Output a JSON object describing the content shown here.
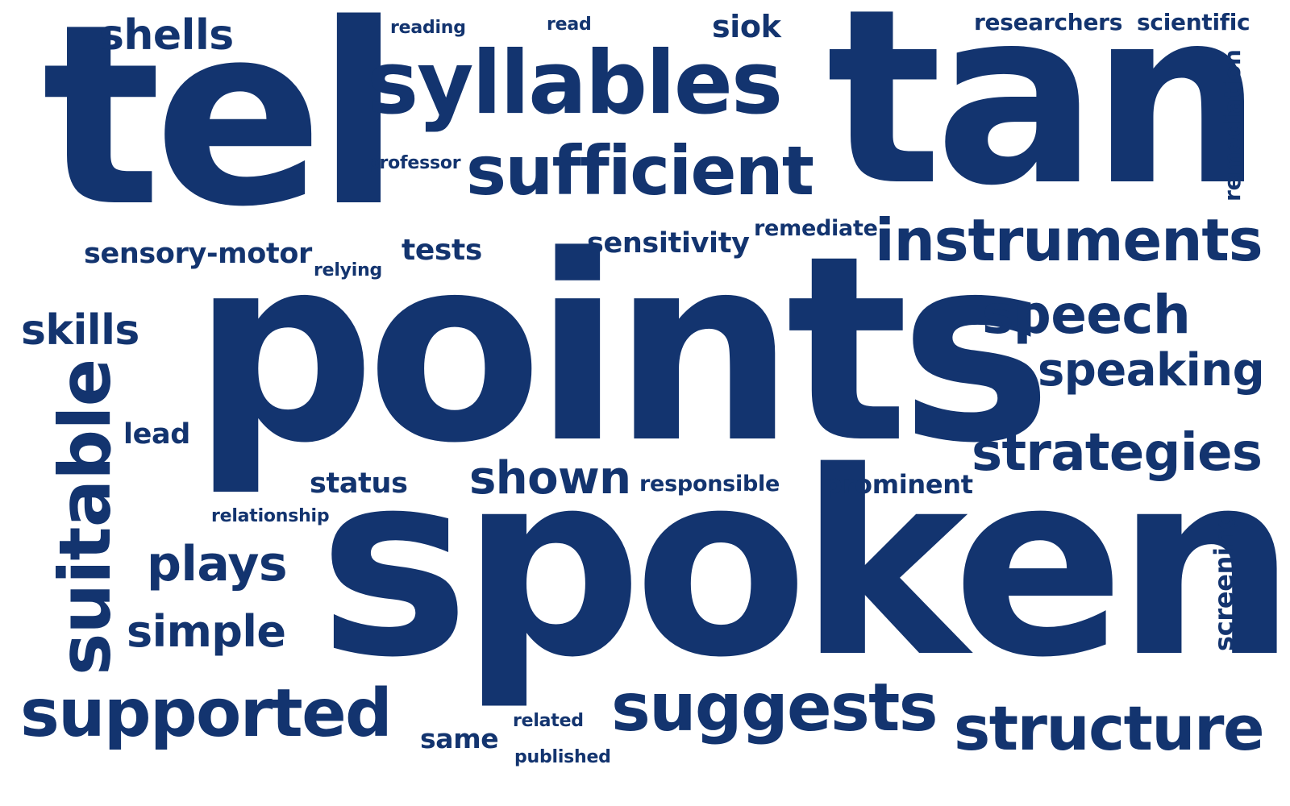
{
  "color": "#13346f",
  "background": "#ffffff",
  "words": {
    "tel": "tel",
    "tan": "tan",
    "points": "points",
    "spoken": "spoken",
    "syllables": "syllables",
    "sufficient": "sufficient",
    "instruments": "instruments",
    "shells": "shells",
    "reading": "reading",
    "read": "read",
    "siok": "siok",
    "researchers": "researchers",
    "scientific": "scientific",
    "remediation": "remediation",
    "professor": "professor",
    "remediate": "remediate",
    "sensory_motor": "sensory-motor",
    "tests": "tests",
    "sensitivity": "sensitivity",
    "relying": "relying",
    "skills": "skills",
    "speech": "speech",
    "speaking": "speaking",
    "suitable": "suitable",
    "lead": "lead",
    "strategies": "strategies",
    "status": "status",
    "shown": "shown",
    "responsible": "responsible",
    "prominent": "prominent",
    "relationship": "relationship",
    "plays": "plays",
    "simple": "simple",
    "screening": "screening",
    "supported": "supported",
    "suggests": "suggests",
    "structure": "structure",
    "same": "same",
    "related": "related",
    "published": "published"
  }
}
